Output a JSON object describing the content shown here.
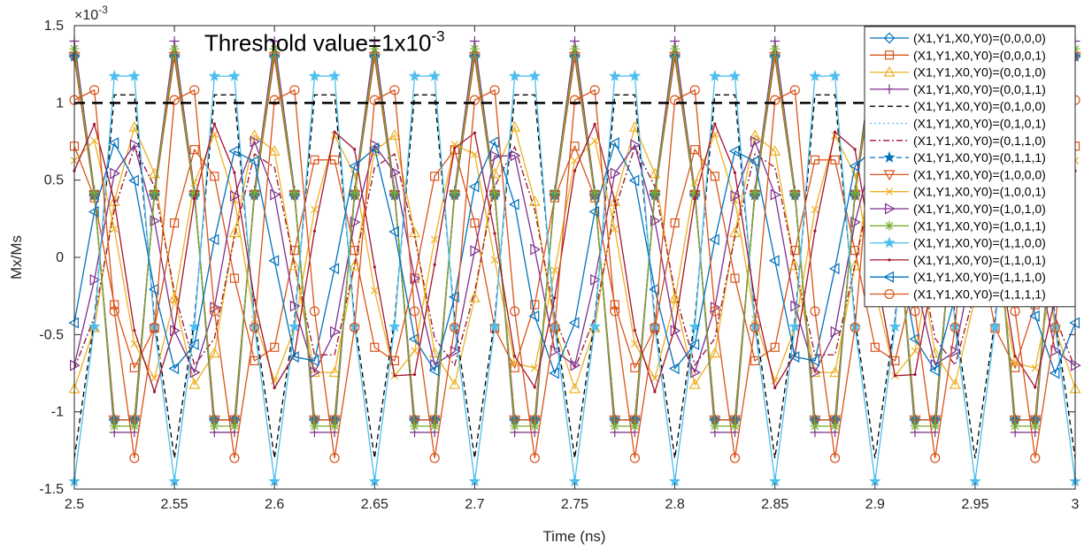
{
  "chart_data": {
    "type": "line",
    "xlabel": "Time (ns)",
    "ylabel": "Mx/Ms",
    "exponent_label": "×10",
    "exponent_power": "-3",
    "annotation": {
      "text": "Threshold value=1x10",
      "power": "-3",
      "x": 2.625,
      "y": 1.45
    },
    "threshold": {
      "y": 1.0,
      "style": "dashed",
      "color": "#000000"
    },
    "xlim": [
      2.5,
      3.0
    ],
    "ylim": [
      -1.5,
      1.5
    ],
    "xticks": [
      2.5,
      2.55,
      2.6,
      2.65,
      2.7,
      2.75,
      2.8,
      2.85,
      2.9,
      2.95,
      3.0
    ],
    "xtick_labels": [
      "2.5",
      "2.55",
      "2.6",
      "2.65",
      "2.7",
      "2.75",
      "2.8",
      "2.85",
      "2.9",
      "2.95",
      "3"
    ],
    "yticks": [
      -1.5,
      -1,
      -0.5,
      0,
      0.5,
      1,
      1.5
    ],
    "ytick_labels": [
      "-1.5",
      "-1",
      "-0.5",
      "0",
      "0.5",
      "1",
      "1.5"
    ],
    "grid": false,
    "legend_position": "top-right",
    "x": [
      2.5,
      2.51,
      2.52,
      2.53,
      2.54,
      2.55,
      2.56,
      2.57,
      2.58,
      2.59,
      2.6,
      2.61,
      2.62,
      2.63,
      2.64,
      2.65,
      2.66,
      2.67,
      2.68,
      2.69,
      2.7,
      2.71,
      2.72,
      2.73,
      2.74,
      2.75,
      2.76,
      2.77,
      2.78,
      2.79,
      2.8,
      2.81,
      2.82,
      2.83,
      2.84,
      2.85,
      2.86,
      2.87,
      2.88,
      2.89,
      2.9,
      2.91,
      2.92,
      2.93,
      2.94,
      2.95,
      2.96,
      2.97,
      2.98,
      2.99,
      3.0
    ],
    "series": [
      {
        "name": "(X1,Y1,X0,Y0)=(0,0,0,0)",
        "color": "#0072BD",
        "marker": "diamond",
        "dash": "",
        "amp": 1.3,
        "period": 0.05,
        "phase": 1.571
      },
      {
        "name": "(X1,Y1,X0,Y0)=(0,0,0,1)",
        "color": "#D95319",
        "marker": "square",
        "dash": "",
        "amp": 0.72,
        "period": 0.0625,
        "phase": 1.571
      },
      {
        "name": "(X1,Y1,X0,Y0)=(0,0,1,0)",
        "color": "#EDB120",
        "marker": "triangle-up",
        "dash": "",
        "amp": 0.85,
        "period": 0.0625,
        "phase": -1.571
      },
      {
        "name": "(X1,Y1,X0,Y0)=(0,0,1,1)",
        "color": "#7E2F8E",
        "marker": "plus",
        "dash": "",
        "amp": 1.4,
        "period": 0.05,
        "phase": 1.571
      },
      {
        "name": "(X1,Y1,X0,Y0)=(0,1,0,0)",
        "color": "#000000",
        "marker": "none",
        "dash": "6,4",
        "amp": 1.3,
        "period": 0.05,
        "phase": -1.571
      },
      {
        "name": "(X1,Y1,X0,Y0)=(0,1,0,1)",
        "color": "#4DBEEE",
        "marker": "none",
        "dash": "2,3",
        "amp": 0.72,
        "period": 0.0625,
        "phase": -1.571
      },
      {
        "name": "(X1,Y1,X0,Y0)=(0,1,1,0)",
        "color": "#A2142F",
        "marker": "none",
        "dash": "7,3,2,3",
        "amp": 0.72,
        "period": 0.0625,
        "phase": -1.571
      },
      {
        "name": "(X1,Y1,X0,Y0)=(0,1,1,1)",
        "color": "#0072BD",
        "marker": "star",
        "dash": "6,4",
        "amp": 1.3,
        "period": 0.05,
        "phase": 1.571
      },
      {
        "name": "(X1,Y1,X0,Y0)=(1,0,0,0)",
        "color": "#D95319",
        "marker": "triangle-down",
        "dash": "",
        "amp": 1.3,
        "period": 0.05,
        "phase": 1.571
      },
      {
        "name": "(X1,Y1,X0,Y0)=(1,0,0,1)",
        "color": "#EDB120",
        "marker": "x",
        "dash": "",
        "amp": 0.8,
        "period": 0.0625,
        "phase": 0.9
      },
      {
        "name": "(X1,Y1,X0,Y0)=(1,0,1,0)",
        "color": "#7E2F8E",
        "marker": "triangle-right",
        "dash": "",
        "amp": 0.75,
        "period": 0.0625,
        "phase": -1.2
      },
      {
        "name": "(X1,Y1,X0,Y0)=(1,0,1,1)",
        "color": "#77AC30",
        "marker": "asterisk",
        "dash": "",
        "amp": 1.35,
        "period": 0.05,
        "phase": 1.571
      },
      {
        "name": "(X1,Y1,X0,Y0)=(1,1,0,0)",
        "color": "#4DBEEE",
        "marker": "star",
        "dash": "",
        "amp": 1.45,
        "period": 0.05,
        "phase": -1.571
      },
      {
        "name": "(X1,Y1,X0,Y0)=(1,1,0,1)",
        "color": "#A2142F",
        "marker": "dot",
        "dash": "",
        "amp": 0.87,
        "period": 0.0625,
        "phase": 0.7
      },
      {
        "name": "(X1,Y1,X0,Y0)=(1,1,1,0)",
        "color": "#0072BD",
        "marker": "triangle-left",
        "dash": "",
        "amp": 0.75,
        "period": 0.0625,
        "phase": -0.6
      },
      {
        "name": "(X1,Y1,X0,Y0)=(1,1,1,1)",
        "color": "#D95319",
        "marker": "circle",
        "dash": "",
        "amp": 1.3,
        "period": 0.05,
        "phase": 0.9
      }
    ]
  }
}
